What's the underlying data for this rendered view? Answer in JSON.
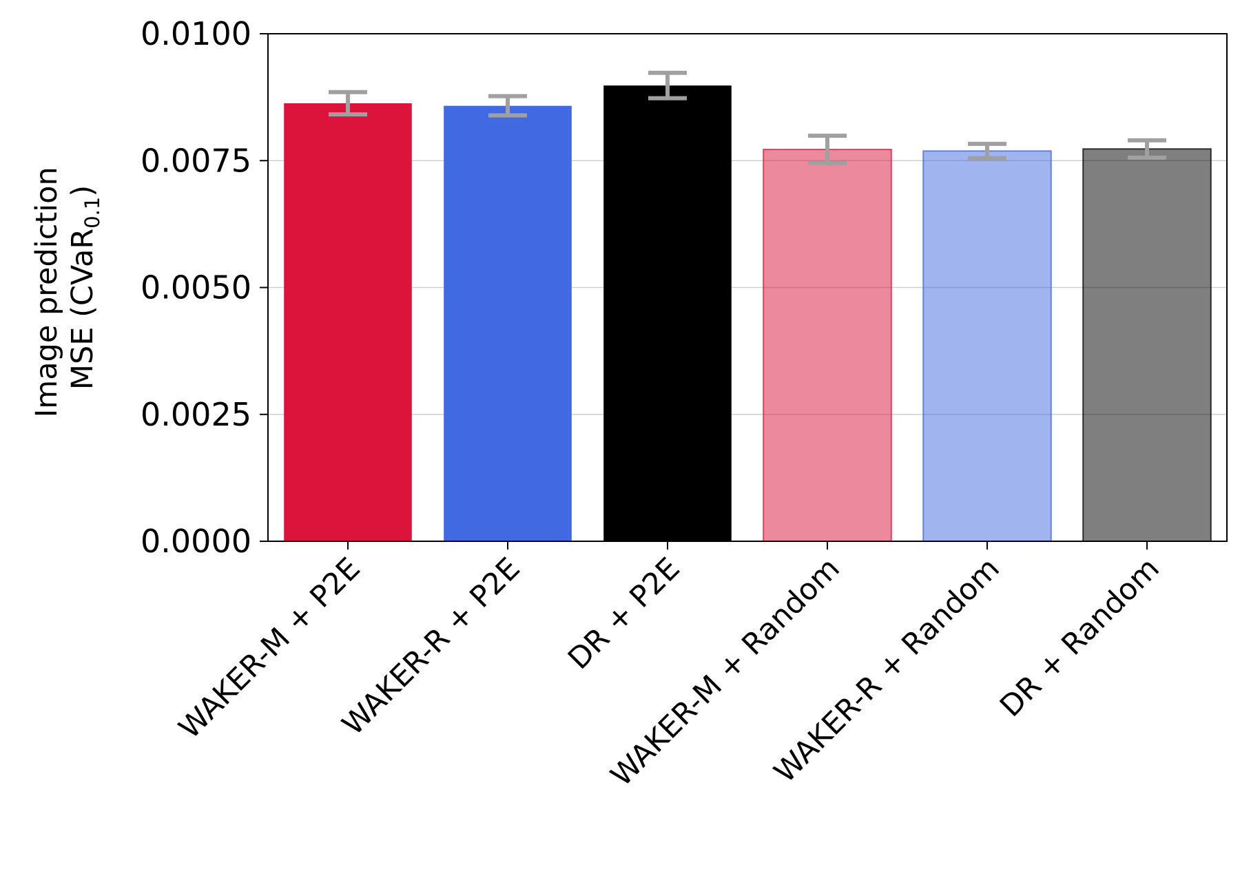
{
  "chart_data": {
    "type": "bar",
    "categories": [
      "WAKER-M + P2E",
      "WAKER-R + P2E",
      "DR + P2E",
      "WAKER-M + Random",
      "WAKER-R + Random",
      "DR + Random"
    ],
    "values": [
      0.00863,
      0.00858,
      0.00898,
      0.00772,
      0.00769,
      0.00773
    ],
    "error": [
      0.00022,
      0.00019,
      0.00025,
      0.00027,
      0.00014,
      0.00017
    ],
    "colors": [
      "#dc143c",
      "#4169e1",
      "#000000",
      "#dc143c",
      "#4169e1",
      "#000000"
    ],
    "opacity": [
      1,
      1,
      1,
      0.5,
      0.5,
      0.5
    ],
    "error_color": "#a0a0a0",
    "ylabel_line1": "Image prediction",
    "ylabel_line2_main": "MSE (CVaR",
    "ylabel_line2_sub": "0.1",
    "ylabel_line2_end": ")",
    "ylim": [
      0,
      0.01
    ],
    "yticks": [
      "0.0000",
      "0.0025",
      "0.0050",
      "0.0075",
      "0.0100"
    ],
    "ytick_values": [
      0,
      0.0025,
      0.005,
      0.0075,
      0.01
    ],
    "grid": "horizontal",
    "title": ""
  }
}
